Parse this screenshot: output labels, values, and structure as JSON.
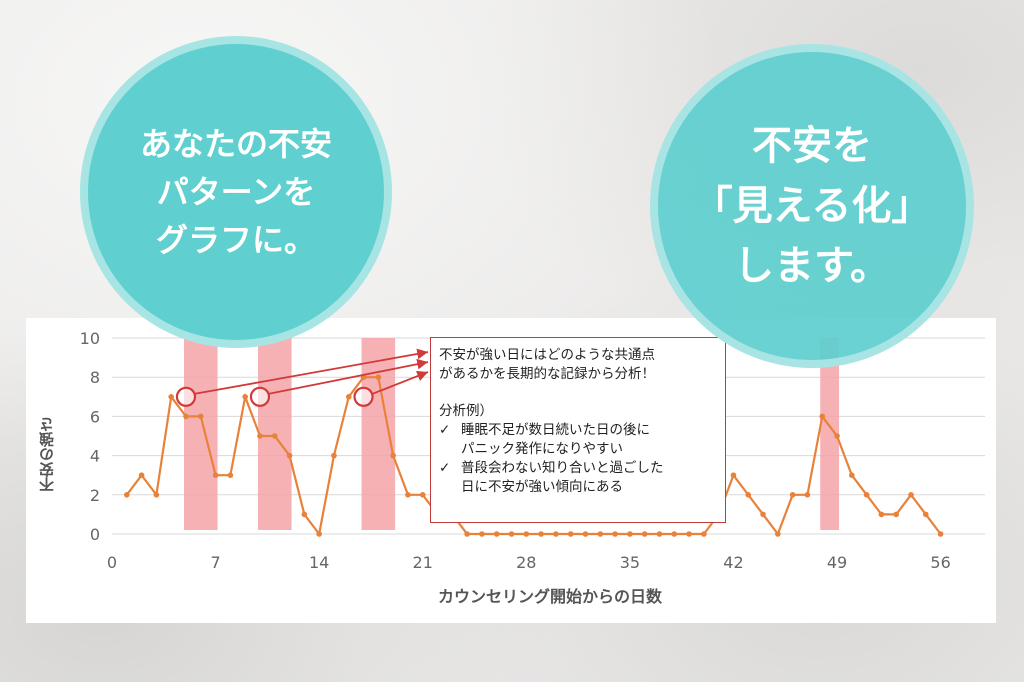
{
  "bubbles": {
    "left": {
      "lines": [
        "あなたの不安",
        "パターンを",
        "グラフに。"
      ]
    },
    "right": {
      "lines": [
        "不安を",
        "「見える化」",
        "します。"
      ]
    }
  },
  "callout": {
    "heading": [
      "不安が強い日にはどのような共通点",
      "があるかを長期的な記録から分析！"
    ],
    "example_title": "分析例）",
    "examples": [
      {
        "check": "✓",
        "lines": [
          "睡眠不足が数日続いた日の後に",
          "パニック発作になりやすい"
        ]
      },
      {
        "check": "✓",
        "lines": [
          "普段会わない知り合いと過ごした",
          "日に不安が強い傾向にある"
        ]
      }
    ]
  },
  "colors": {
    "accent": "#5fcfcf",
    "line": "#e8823a",
    "highlight": "#f5a3a8",
    "arrow": "#d23a3a"
  },
  "chart_data": {
    "type": "line",
    "xlabel": "カウンセリング開始からの日数",
    "ylabel": "不安の強さ",
    "xlim": [
      0,
      59
    ],
    "ylim": [
      0,
      10
    ],
    "xticks": [
      0,
      7,
      14,
      21,
      28,
      35,
      42,
      49,
      56
    ],
    "yticks": [
      0,
      2,
      4,
      6,
      8,
      10
    ],
    "grid": true,
    "series": [
      {
        "x": [
          1,
          2,
          3,
          4,
          5,
          6,
          7,
          8,
          9,
          10,
          11,
          12,
          13,
          14,
          15,
          16,
          17,
          18,
          19,
          20,
          21,
          22,
          23,
          24,
          25,
          26,
          27,
          28,
          29,
          30,
          31,
          32,
          33,
          34,
          35,
          36,
          37,
          38,
          39,
          40,
          41,
          42,
          43,
          44,
          45,
          46,
          47,
          48,
          49,
          50,
          51,
          52,
          53,
          54,
          55,
          56
        ],
        "y": [
          2,
          3,
          2,
          7,
          6,
          6,
          3,
          3,
          7,
          5,
          5,
          4,
          1,
          0,
          4,
          7,
          8,
          8,
          4,
          2,
          2,
          1,
          1,
          0,
          0,
          0,
          0,
          0,
          0,
          0,
          0,
          0,
          0,
          0,
          0,
          0,
          0,
          0,
          0,
          0,
          1,
          3,
          2,
          1,
          0,
          2,
          2,
          6,
          5,
          3,
          2,
          1,
          1,
          2,
          1,
          0
        ]
      }
    ],
    "highlight_bands": [
      [
        5,
        7
      ],
      [
        10,
        12
      ],
      [
        17,
        19
      ],
      [
        48,
        49
      ]
    ],
    "markers": [
      {
        "x": 5,
        "y": 7
      },
      {
        "x": 10,
        "y": 7
      },
      {
        "x": 17,
        "y": 7
      }
    ]
  }
}
